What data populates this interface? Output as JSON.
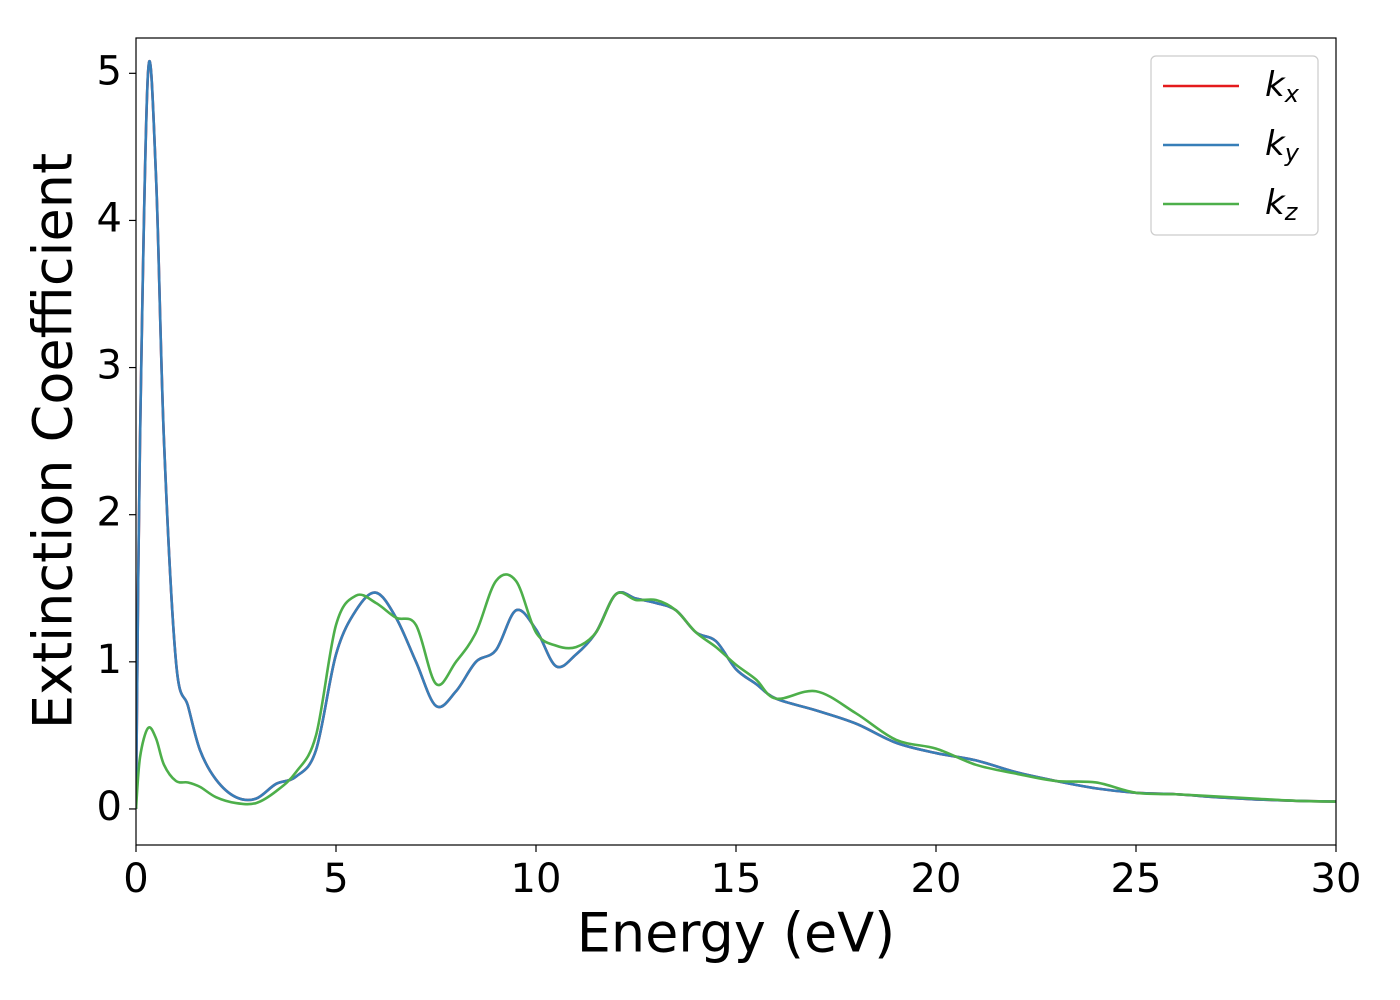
{
  "chart_data": {
    "type": "line",
    "xlabel": "Energy (eV)",
    "ylabel": "Extinction Coefficient",
    "x": [
      0,
      0.1,
      0.3,
      0.5,
      0.7,
      1.0,
      1.3,
      1.6,
      2.0,
      2.5,
      3.0,
      3.5,
      4.0,
      4.5,
      5.0,
      5.5,
      6.0,
      6.5,
      7.0,
      7.5,
      8.0,
      8.5,
      9.0,
      9.5,
      10.0,
      10.5,
      11.0,
      11.5,
      12.0,
      12.5,
      13.0,
      13.5,
      14.0,
      14.5,
      15.0,
      15.5,
      16.0,
      17.0,
      18.0,
      19.0,
      20.0,
      21.0,
      22.0,
      23.0,
      24.0,
      25.0,
      26.0,
      27.0,
      28.0,
      29.0,
      30.0
    ],
    "series": [
      {
        "name": "kx",
        "color": "#e41a1c",
        "values": [
          0,
          2.5,
          5.0,
          4.3,
          2.5,
          1.0,
          0.7,
          0.4,
          0.2,
          0.08,
          0.07,
          0.17,
          0.22,
          0.4,
          1.05,
          1.35,
          1.47,
          1.3,
          1.0,
          0.7,
          0.8,
          1.0,
          1.08,
          1.35,
          1.22,
          0.97,
          1.05,
          1.2,
          1.46,
          1.43,
          1.4,
          1.35,
          1.2,
          1.14,
          0.95,
          0.85,
          0.75,
          0.67,
          0.58,
          0.45,
          0.38,
          0.33,
          0.25,
          0.19,
          0.14,
          0.11,
          0.1,
          0.08,
          0.065,
          0.055,
          0.05
        ]
      },
      {
        "name": "ky",
        "color": "#377eb8",
        "values": [
          0,
          2.5,
          5.0,
          4.3,
          2.5,
          1.0,
          0.7,
          0.4,
          0.2,
          0.08,
          0.07,
          0.17,
          0.22,
          0.4,
          1.05,
          1.35,
          1.47,
          1.3,
          1.0,
          0.7,
          0.8,
          1.0,
          1.08,
          1.35,
          1.22,
          0.97,
          1.05,
          1.2,
          1.46,
          1.43,
          1.4,
          1.35,
          1.2,
          1.14,
          0.95,
          0.85,
          0.75,
          0.67,
          0.58,
          0.45,
          0.38,
          0.33,
          0.25,
          0.19,
          0.14,
          0.11,
          0.1,
          0.08,
          0.065,
          0.055,
          0.05
        ]
      },
      {
        "name": "kz",
        "color": "#4daf4a",
        "values": [
          0,
          0.35,
          0.55,
          0.48,
          0.3,
          0.19,
          0.18,
          0.15,
          0.08,
          0.04,
          0.04,
          0.12,
          0.25,
          0.5,
          1.25,
          1.45,
          1.4,
          1.3,
          1.25,
          0.85,
          1.0,
          1.2,
          1.55,
          1.55,
          1.2,
          1.11,
          1.1,
          1.2,
          1.46,
          1.42,
          1.42,
          1.35,
          1.2,
          1.1,
          0.98,
          0.88,
          0.75,
          0.8,
          0.65,
          0.47,
          0.41,
          0.3,
          0.24,
          0.19,
          0.18,
          0.11,
          0.1,
          0.085,
          0.07,
          0.055,
          0.05
        ]
      }
    ],
    "xlim": [
      0,
      30
    ],
    "xticks": [
      0,
      5,
      10,
      15,
      20,
      25,
      30
    ],
    "ylim": [
      -0.245,
      5.24
    ],
    "yticks": [
      0,
      1,
      2,
      3,
      4,
      5
    ],
    "legend": "upper right"
  }
}
